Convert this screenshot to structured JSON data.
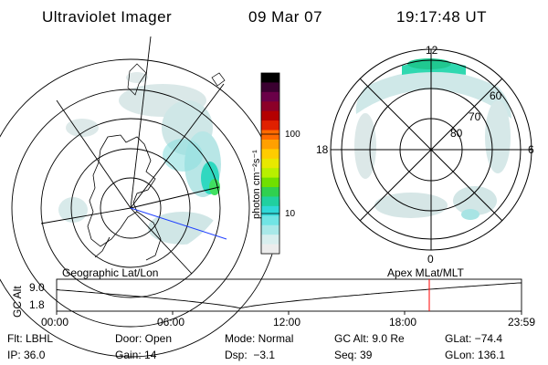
{
  "header": {
    "instrument": "Ultraviolet Imager",
    "date": "09 Mar 07",
    "time": "19:17:48 UT"
  },
  "left_panel": {
    "caption": "Geographic Lat/Lon"
  },
  "right_panel": {
    "caption": "Apex MLat/MLT",
    "mlt_labels": {
      "top": "12",
      "left": "18",
      "right": "6",
      "bottom": "0"
    },
    "lat_labels": [
      "80",
      "70",
      "60"
    ]
  },
  "colorbar": {
    "label": "photon cm⁻²s⁻¹",
    "tick_labels": [
      "100",
      "10"
    ],
    "colors": [
      "#000000",
      "#3a0030",
      "#6a0048",
      "#8c0028",
      "#b40000",
      "#e02000",
      "#ff6a00",
      "#ffa000",
      "#ffcc00",
      "#e8e800",
      "#b8f000",
      "#70e000",
      "#30d050",
      "#20d0a0",
      "#30d8d8",
      "#70e4e4",
      "#a8e8e8",
      "#d8eeee",
      "#ececec"
    ]
  },
  "timeline": {
    "y_axis_label": "GC Alt",
    "y_ticks": [
      "9.0",
      "1.8"
    ],
    "x_ticks": [
      "00:00",
      "06:00",
      "12:00",
      "18:00",
      "23:59"
    ],
    "marker_color": "#ff0000"
  },
  "info": {
    "row1": [
      "Flt: LBHL",
      "Door: Open",
      "Mode: Normal",
      "GC Alt: 9.0 Re",
      "GLat: −74.4"
    ],
    "row2": [
      "IP: 36.0",
      "Gain: 14",
      "Dsp:  −3.1",
      "Seq: 39",
      "GLon: 136.1"
    ]
  }
}
